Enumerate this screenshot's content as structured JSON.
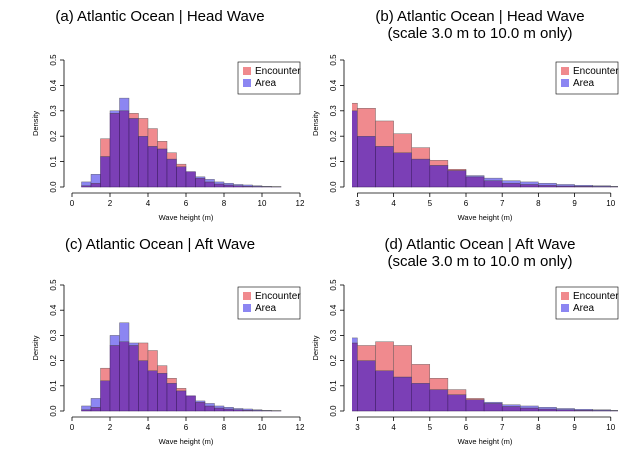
{
  "colors": {
    "encounter": "#f08a8e",
    "area": "#8c86f2",
    "overlap": "#7b3fb6",
    "axis": "#000000"
  },
  "chart_data": [
    {
      "type": "bar",
      "title": [
        "(a)  Atlantic Ocean | Head Wave"
      ],
      "xlabel": "Wave height (m)",
      "ylabel": "Density",
      "xlim": [
        0,
        12
      ],
      "ylim": [
        0,
        0.5
      ],
      "xticks": [
        "0",
        "2",
        "4",
        "6",
        "8",
        "10",
        "12"
      ],
      "yticks": [
        "0.0",
        "0.1",
        "0.2",
        "0.3",
        "0.4",
        "0.5"
      ],
      "bin_width": 0.5,
      "bin_starts": [
        0.5,
        1.0,
        1.5,
        2.0,
        2.5,
        3.0,
        3.5,
        4.0,
        4.5,
        5.0,
        5.5,
        6.0,
        6.5,
        7.0,
        7.5,
        8.0,
        8.5,
        9.0,
        9.5,
        10.0,
        10.5
      ],
      "legend": [
        "Encounter",
        "Area"
      ],
      "legend_position": "top-right",
      "series": [
        {
          "name": "Encounter",
          "values": [
            0.005,
            0.015,
            0.19,
            0.29,
            0.3,
            0.29,
            0.27,
            0.23,
            0.18,
            0.135,
            0.09,
            0.06,
            0.035,
            0.02,
            0.012,
            0.008,
            0.005,
            0.003,
            0.002,
            0.001,
            0.0005
          ]
        },
        {
          "name": "Area",
          "values": [
            0.02,
            0.05,
            0.12,
            0.3,
            0.35,
            0.27,
            0.2,
            0.16,
            0.15,
            0.11,
            0.08,
            0.06,
            0.04,
            0.03,
            0.02,
            0.015,
            0.01,
            0.008,
            0.005,
            0.003,
            0.002
          ]
        }
      ]
    },
    {
      "type": "bar",
      "title": [
        "(b) Atlantic Ocean | Head Wave",
        "(scale 3.0 m to 10.0 m only)"
      ],
      "xlabel": "Wave height (m)",
      "ylabel": "Density",
      "xlim": [
        2.85,
        10.2
      ],
      "ylim": [
        0,
        0.5
      ],
      "xticks": [
        "3",
        "4",
        "5",
        "6",
        "7",
        "8",
        "9",
        "10"
      ],
      "yticks": [
        "0.0",
        "0.1",
        "0.2",
        "0.3",
        "0.4",
        "0.5"
      ],
      "bin_width": 0.5,
      "bin_starts": [
        2.5,
        3.0,
        3.5,
        4.0,
        4.5,
        5.0,
        5.5,
        6.0,
        6.5,
        7.0,
        7.5,
        8.0,
        8.5,
        9.0,
        9.5,
        10.0
      ],
      "legend": [
        "Encounter",
        "Area"
      ],
      "legend_position": "top-right",
      "series": [
        {
          "name": "Encounter",
          "values": [
            0.33,
            0.31,
            0.26,
            0.21,
            0.155,
            0.105,
            0.07,
            0.04,
            0.025,
            0.015,
            0.01,
            0.007,
            0.004,
            0.003,
            0.002,
            0.001
          ]
        },
        {
          "name": "Area",
          "values": [
            0.3,
            0.2,
            0.16,
            0.135,
            0.11,
            0.085,
            0.065,
            0.045,
            0.035,
            0.025,
            0.02,
            0.015,
            0.01,
            0.007,
            0.005,
            0.003
          ]
        }
      ]
    },
    {
      "type": "bar",
      "title": [
        "(c) Atlantic Ocean | Aft Wave"
      ],
      "xlabel": "Wave height (m)",
      "ylabel": "Density",
      "xlim": [
        0,
        12
      ],
      "ylim": [
        0,
        0.5
      ],
      "xticks": [
        "0",
        "2",
        "4",
        "6",
        "8",
        "10",
        "12"
      ],
      "yticks": [
        "0.0",
        "0.1",
        "0.2",
        "0.3",
        "0.4",
        "0.5"
      ],
      "bin_width": 0.5,
      "bin_starts": [
        0.5,
        1.0,
        1.5,
        2.0,
        2.5,
        3.0,
        3.5,
        4.0,
        4.5,
        5.0,
        5.5,
        6.0,
        6.5,
        7.0,
        7.5,
        8.0,
        8.5,
        9.0,
        9.5,
        10.0,
        10.5
      ],
      "legend": [
        "Encounter",
        "Area"
      ],
      "legend_position": "top-right",
      "series": [
        {
          "name": "Encounter",
          "values": [
            0.005,
            0.015,
            0.17,
            0.26,
            0.275,
            0.26,
            0.27,
            0.24,
            0.18,
            0.13,
            0.09,
            0.06,
            0.035,
            0.02,
            0.012,
            0.008,
            0.005,
            0.003,
            0.002,
            0.001,
            0.0005
          ]
        },
        {
          "name": "Area",
          "values": [
            0.02,
            0.05,
            0.12,
            0.3,
            0.35,
            0.27,
            0.2,
            0.16,
            0.15,
            0.11,
            0.08,
            0.06,
            0.04,
            0.03,
            0.02,
            0.015,
            0.01,
            0.008,
            0.005,
            0.003,
            0.002
          ]
        }
      ]
    },
    {
      "type": "bar",
      "title": [
        "(d) Atlantic Ocean | Aft Wave",
        "(scale 3.0 m to 10.0 m only)"
      ],
      "xlabel": "Wave height (m)",
      "ylabel": "Density",
      "xlim": [
        2.85,
        10.2
      ],
      "ylim": [
        0,
        0.5
      ],
      "xticks": [
        "3",
        "4",
        "5",
        "6",
        "7",
        "8",
        "9",
        "10"
      ],
      "yticks": [
        "0.0",
        "0.1",
        "0.2",
        "0.3",
        "0.4",
        "0.5"
      ],
      "bin_width": 0.5,
      "bin_starts": [
        2.5,
        3.0,
        3.5,
        4.0,
        4.5,
        5.0,
        5.5,
        6.0,
        6.5,
        7.0,
        7.5,
        8.0,
        8.5,
        9.0,
        9.5,
        10.0
      ],
      "legend": [
        "Encounter",
        "Area"
      ],
      "legend_position": "top-right",
      "series": [
        {
          "name": "Encounter",
          "values": [
            0.27,
            0.26,
            0.275,
            0.26,
            0.185,
            0.13,
            0.085,
            0.05,
            0.03,
            0.018,
            0.012,
            0.008,
            0.005,
            0.003,
            0.002,
            0.001
          ]
        },
        {
          "name": "Area",
          "values": [
            0.29,
            0.2,
            0.16,
            0.135,
            0.11,
            0.085,
            0.065,
            0.045,
            0.035,
            0.025,
            0.02,
            0.015,
            0.01,
            0.007,
            0.005,
            0.003
          ]
        }
      ]
    }
  ]
}
